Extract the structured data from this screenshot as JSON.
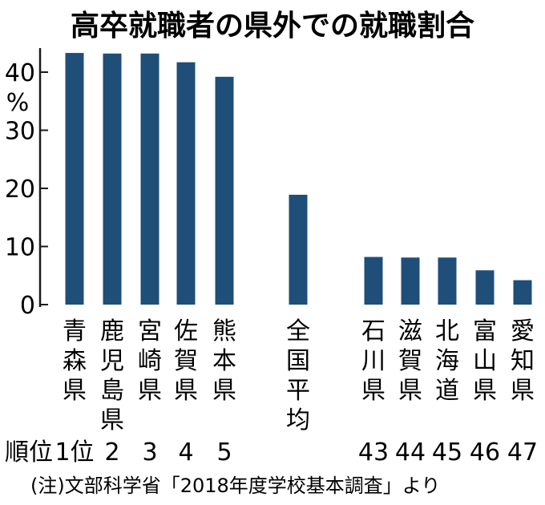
{
  "chart_data": {
    "type": "bar",
    "title": "高卒就職者の県外での就職割合",
    "unit": "%",
    "ylim": [
      0,
      43
    ],
    "yticks": [
      "0",
      "10",
      "20",
      "30",
      "40"
    ],
    "bar_color": "#1f4e79",
    "categories": [
      "青森県",
      "鹿児島県",
      "宮崎県",
      "佐賀県",
      "熊本県",
      "全国平均",
      "石川県",
      "滋賀県",
      "北海道",
      "富山県",
      "愛知県"
    ],
    "values": [
      43.3,
      43.2,
      43.2,
      41.7,
      39.2,
      18.9,
      8.2,
      8.1,
      8.1,
      5.9,
      4.2
    ],
    "rank_label": "順位",
    "ranks": [
      "1位",
      "2",
      "3",
      "4",
      "5",
      "",
      "43",
      "44",
      "45",
      "46",
      "47"
    ],
    "note": "(注)文部科学省「2018年度学校基本調査」より"
  }
}
